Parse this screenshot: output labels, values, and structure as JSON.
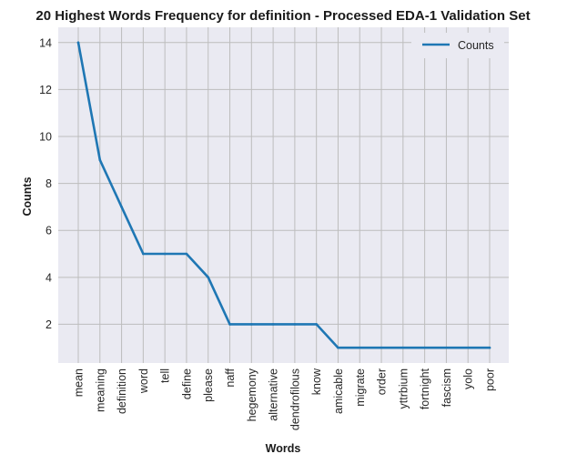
{
  "chart_data": {
    "type": "line",
    "title": "20 Highest Words Frequency for definition - Processed EDA-1 Validation Set",
    "xlabel": "Words",
    "ylabel": "Counts",
    "categories": [
      "mean",
      "meaning",
      "definition",
      "word",
      "tell",
      "define",
      "please",
      "naff",
      "hegemony",
      "alternative",
      "dendrofilous",
      "know",
      "amicable",
      "migrate",
      "order",
      "yttrbium",
      "fortnight",
      "fascism",
      "yolo",
      "poor"
    ],
    "series": [
      {
        "name": "Counts",
        "values": [
          14,
          9,
          7,
          5,
          5,
          5,
          4,
          2,
          2,
          2,
          2,
          2,
          1,
          1,
          1,
          1,
          1,
          1,
          1,
          1
        ]
      }
    ],
    "yticks": [
      2,
      4,
      6,
      8,
      10,
      12,
      14
    ],
    "ylim": [
      0.35,
      14.65
    ],
    "grid": true,
    "legend_position": "upper-right",
    "line_color": "#1f77b4",
    "plot_background": "#eaeaf2",
    "grid_color": "#bdbdbd"
  }
}
